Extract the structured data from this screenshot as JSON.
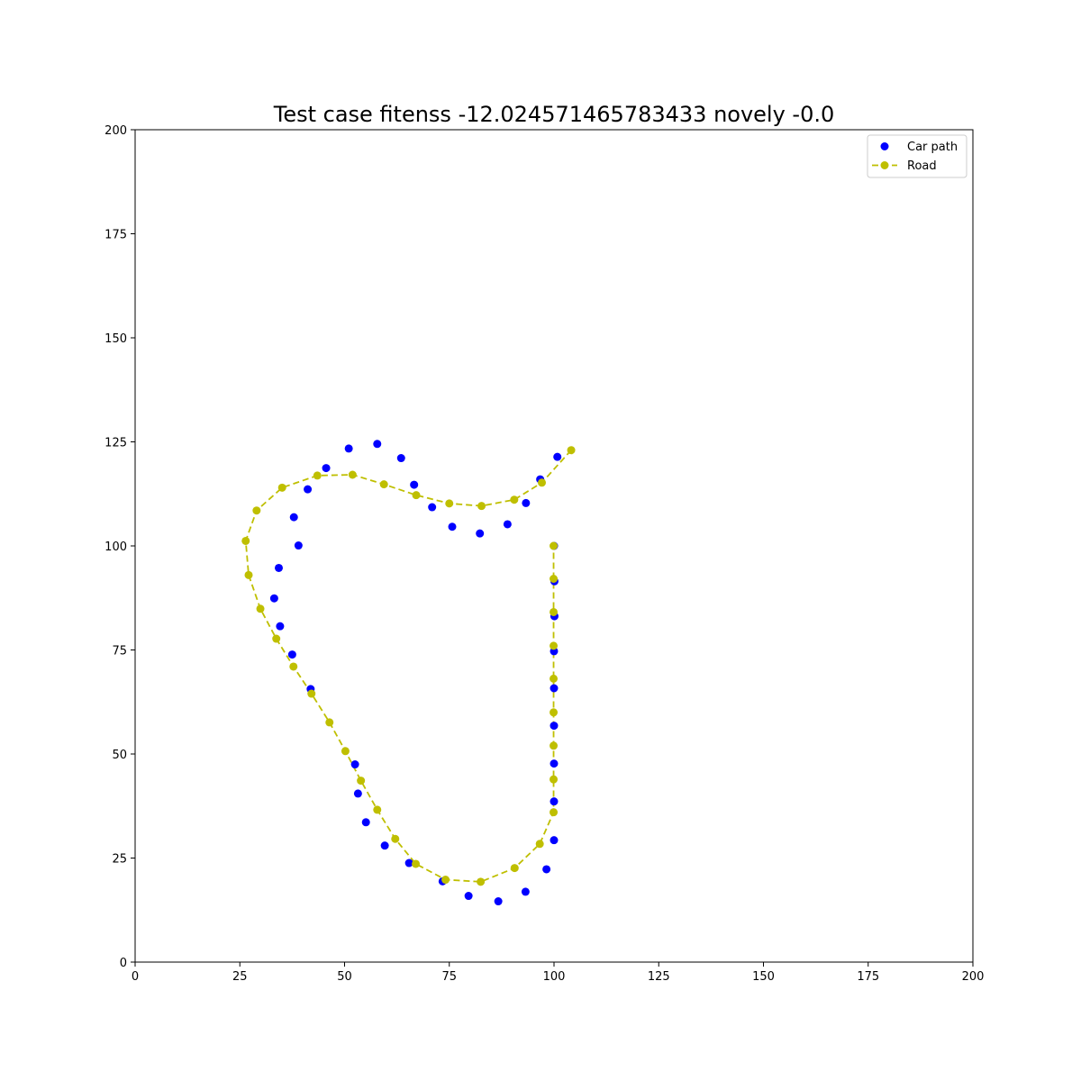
{
  "chart_data": {
    "type": "scatter",
    "title": "Test case fitenss -12.024571465783433 novely -0.0",
    "xlabel": "",
    "ylabel": "",
    "xlim": [
      0,
      200
    ],
    "ylim": [
      0,
      200
    ],
    "xticks": [
      0,
      25,
      50,
      75,
      100,
      125,
      150,
      175,
      200
    ],
    "yticks": [
      0,
      25,
      50,
      75,
      100,
      125,
      150,
      175,
      200
    ],
    "grid": false,
    "legend_position": "top-right",
    "series": [
      {
        "name": "Car path",
        "kind": "scatter",
        "color": "#0000ff",
        "points": [
          [
            100.0,
            100.0
          ],
          [
            100.1,
            91.5
          ],
          [
            100.1,
            83.1
          ],
          [
            100.0,
            74.7
          ],
          [
            100.0,
            65.8
          ],
          [
            100.0,
            56.8
          ],
          [
            100.0,
            47.7
          ],
          [
            100.0,
            38.6
          ],
          [
            100.0,
            29.3
          ],
          [
            98.2,
            22.3
          ],
          [
            93.2,
            16.9
          ],
          [
            86.7,
            14.6
          ],
          [
            79.6,
            15.9
          ],
          [
            73.4,
            19.4
          ],
          [
            65.4,
            23.8
          ],
          [
            59.6,
            28.0
          ],
          [
            55.1,
            33.6
          ],
          [
            53.2,
            40.5
          ],
          [
            52.5,
            47.5
          ],
          [
            41.9,
            65.6
          ],
          [
            37.5,
            73.9
          ],
          [
            34.6,
            80.7
          ],
          [
            33.2,
            87.4
          ],
          [
            34.3,
            94.7
          ],
          [
            39.0,
            100.1
          ],
          [
            37.9,
            106.9
          ],
          [
            41.2,
            113.6
          ],
          [
            45.6,
            118.7
          ],
          [
            51.0,
            123.4
          ],
          [
            57.8,
            124.5
          ],
          [
            63.5,
            121.1
          ],
          [
            66.6,
            114.7
          ],
          [
            70.9,
            109.3
          ],
          [
            75.7,
            104.6
          ],
          [
            82.3,
            103.0
          ],
          [
            88.9,
            105.2
          ],
          [
            93.3,
            110.3
          ],
          [
            96.7,
            116.0
          ],
          [
            100.8,
            121.4
          ]
        ]
      },
      {
        "name": "Road",
        "kind": "line-dashed-markers",
        "color": "#bfbf00",
        "points": [
          [
            104.1,
            123.0
          ],
          [
            97.1,
            115.2
          ],
          [
            90.5,
            111.1
          ],
          [
            82.7,
            109.6
          ],
          [
            75.0,
            110.2
          ],
          [
            67.1,
            112.2
          ],
          [
            59.4,
            114.8
          ],
          [
            51.9,
            117.1
          ],
          [
            43.5,
            116.9
          ],
          [
            35.1,
            114.0
          ],
          [
            29.0,
            108.5
          ],
          [
            26.4,
            101.2
          ],
          [
            27.1,
            93.0
          ],
          [
            29.9,
            84.9
          ],
          [
            33.7,
            77.7
          ],
          [
            37.8,
            71.0
          ],
          [
            42.1,
            64.5
          ],
          [
            46.4,
            57.6
          ],
          [
            50.2,
            50.7
          ],
          [
            53.9,
            43.6
          ],
          [
            57.8,
            36.6
          ],
          [
            62.1,
            29.6
          ],
          [
            67.0,
            23.6
          ],
          [
            74.1,
            19.8
          ],
          [
            82.5,
            19.3
          ],
          [
            90.6,
            22.6
          ],
          [
            96.6,
            28.4
          ],
          [
            99.9,
            36.0
          ],
          [
            99.9,
            43.9
          ],
          [
            99.9,
            52.0
          ],
          [
            99.9,
            60.0
          ],
          [
            99.9,
            68.1
          ],
          [
            99.9,
            76.0
          ],
          [
            99.9,
            84.1
          ],
          [
            99.9,
            92.1
          ],
          [
            99.9,
            100.0
          ]
        ]
      }
    ]
  }
}
